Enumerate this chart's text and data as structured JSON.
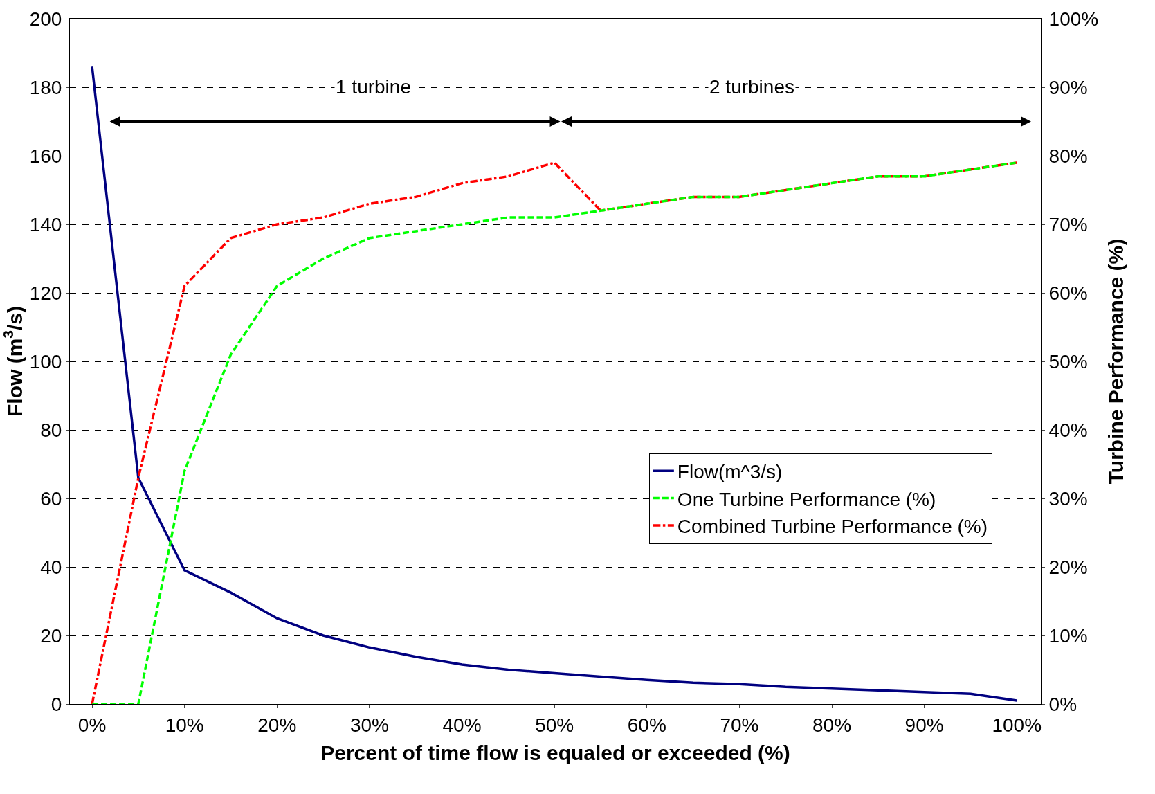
{
  "chart_data": {
    "type": "line",
    "xlabel": "Percent of time flow is equaled or exceeded (%)",
    "ylabel": "Flow (m$^{3}$/s)",
    "y2label": "Turbine Performance (%)",
    "x": [
      0,
      5,
      10,
      15,
      20,
      25,
      30,
      35,
      40,
      45,
      50,
      55,
      60,
      65,
      70,
      75,
      80,
      85,
      90,
      95,
      100
    ],
    "series": [
      {
        "name": "Flow(m^3/s)",
        "color": "#000080",
        "line_style": "solid",
        "values": [
          186,
          66,
          39,
          32.5,
          25,
          20,
          16.5,
          13.8,
          11.5,
          10,
          9,
          8,
          7,
          6.2,
          5.8,
          5,
          4.5,
          4,
          3.5,
          3,
          1
        ]
      },
      {
        "name": "One Turbine Performance (%)",
        "color": "#00ff00",
        "line_style": "dashed",
        "axis": "y2",
        "values": [
          0,
          0,
          34,
          51,
          61,
          65,
          68,
          69,
          70,
          71,
          71,
          72,
          73,
          74,
          74,
          75,
          76,
          77,
          77,
          78,
          79
        ]
      },
      {
        "name": "Combined Turbine Performance (%)",
        "color": "#ff0000",
        "line_style": "dashdot",
        "axis": "y2",
        "values": [
          0,
          33,
          61,
          68,
          70,
          71,
          73,
          74,
          76,
          77,
          79,
          72,
          73,
          74,
          74,
          75,
          76,
          77,
          77,
          78,
          79
        ]
      }
    ],
    "xlim": [
      -2.4,
      102.6
    ],
    "xticks": [
      {
        "value": 0,
        "label": "0%"
      },
      {
        "value": 10,
        "label": "10%"
      },
      {
        "value": 20,
        "label": "20%"
      },
      {
        "value": 30,
        "label": "30%"
      },
      {
        "value": 40,
        "label": "40%"
      },
      {
        "value": 50,
        "label": "50%"
      },
      {
        "value": 60,
        "label": "60%"
      },
      {
        "value": 70,
        "label": "70%"
      },
      {
        "value": 80,
        "label": "80%"
      },
      {
        "value": 90,
        "label": "90%"
      },
      {
        "value": 100,
        "label": "100%"
      }
    ],
    "ylim": [
      0,
      200
    ],
    "yticks": [
      0,
      20,
      40,
      60,
      80,
      100,
      120,
      140,
      160,
      180,
      200
    ],
    "y2lim": [
      0,
      100
    ],
    "y2ticks": [
      {
        "value": 0,
        "label": "0%"
      },
      {
        "value": 10,
        "label": "10%"
      },
      {
        "value": 20,
        "label": "20%"
      },
      {
        "value": 30,
        "label": "30%"
      },
      {
        "value": 40,
        "label": "40%"
      },
      {
        "value": 50,
        "label": "50%"
      },
      {
        "value": 60,
        "label": "60%"
      },
      {
        "value": 70,
        "label": "70%"
      },
      {
        "value": 80,
        "label": "80%"
      },
      {
        "value": 90,
        "label": "90%"
      },
      {
        "value": 100,
        "label": "100%"
      }
    ],
    "annotations": [
      "1 turbine",
      "2 turbines"
    ],
    "grid": "y",
    "legend": "right",
    "marker": "none"
  }
}
